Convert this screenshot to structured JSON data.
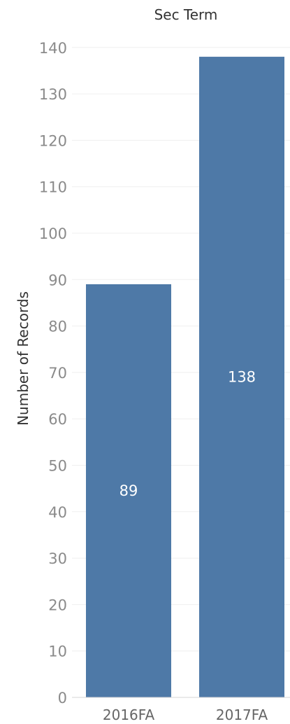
{
  "chart_data": {
    "type": "bar",
    "title": "Sec Term",
    "ylabel": "Number of Records",
    "xlabel": "",
    "categories": [
      "2016FA",
      "2017FA"
    ],
    "values": [
      89,
      138
    ],
    "data_labels": [
      "89",
      "138"
    ],
    "ylim": [
      0,
      145
    ],
    "y_ticks": [
      0,
      10,
      20,
      30,
      40,
      50,
      60,
      70,
      80,
      90,
      100,
      110,
      120,
      130,
      140
    ],
    "bar_color": "#4e79a7",
    "grid": true,
    "legend": "none"
  }
}
